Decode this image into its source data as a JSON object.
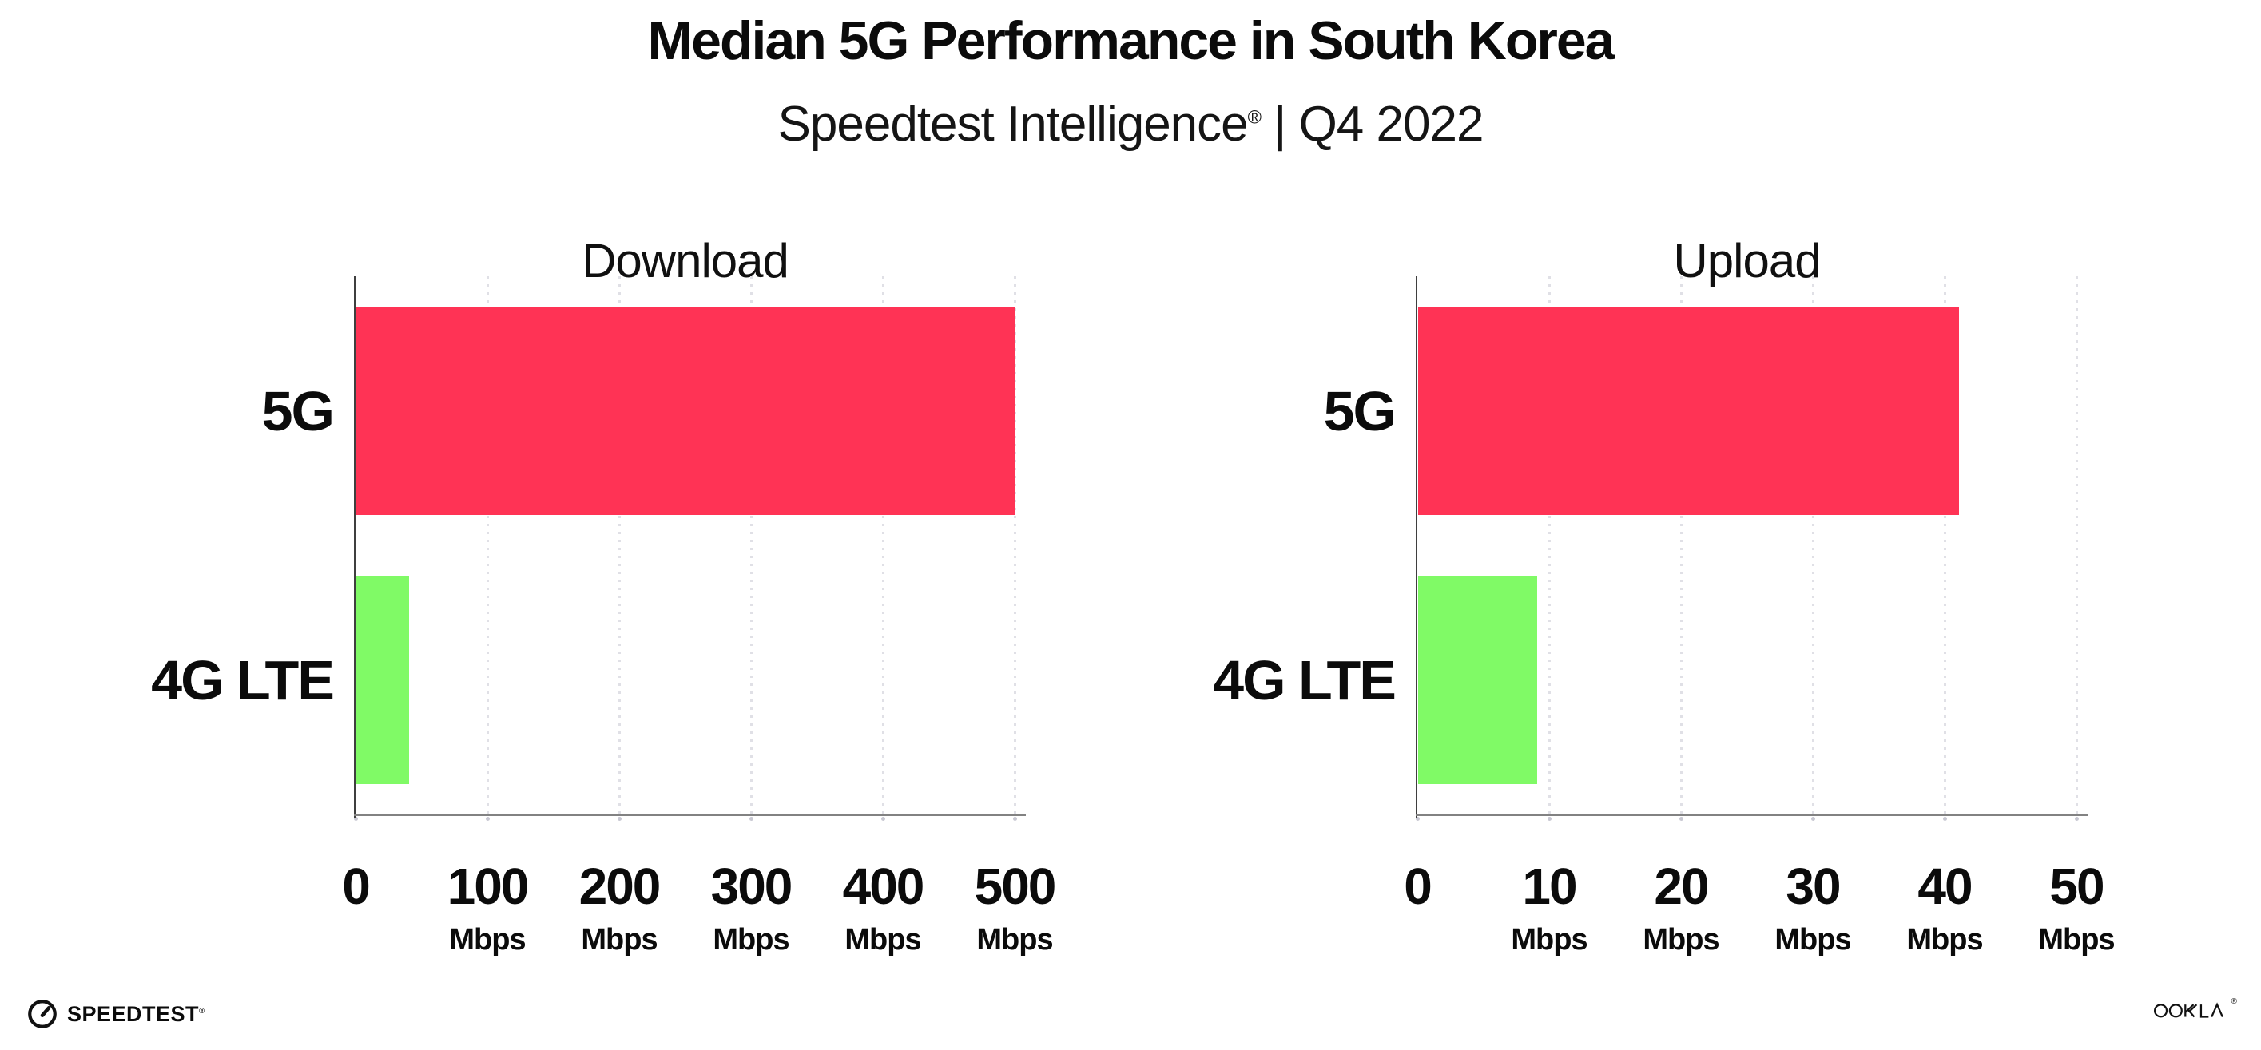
{
  "header": {
    "title": "Median 5G Performance in South Korea",
    "subtitle_brand": "Speedtest Intelligence",
    "subtitle_reg": "®",
    "subtitle_rest": " | Q4 2022"
  },
  "colors": {
    "bar_5g": "#FF3355",
    "bar_4g_lte": "#80FA66",
    "grid_dots": "#e0e0e6",
    "y_axis": "#3f3f3f",
    "x_axis": "#828282",
    "text": "#0b0b0b"
  },
  "chart_data": [
    {
      "type": "bar",
      "orientation": "horizontal",
      "title": "Download",
      "categories": [
        "5G",
        "4G LTE"
      ],
      "values": [
        500,
        40
      ],
      "unit": "Mbps",
      "xlabel": "",
      "ylabel": "",
      "xlim": [
        0,
        500
      ],
      "xticks": [
        0,
        100,
        200,
        300,
        400,
        500
      ],
      "grid": "vertical-dotted",
      "legend": "none",
      "bar_colors": [
        "#FF3355",
        "#80FA66"
      ]
    },
    {
      "type": "bar",
      "orientation": "horizontal",
      "title": "Upload",
      "categories": [
        "5G",
        "4G LTE"
      ],
      "values": [
        41,
        9
      ],
      "unit": "Mbps",
      "xlabel": "",
      "ylabel": "",
      "xlim": [
        0,
        50
      ],
      "xticks": [
        0,
        10,
        20,
        30,
        40,
        50
      ],
      "grid": "vertical-dotted",
      "legend": "none",
      "bar_colors": [
        "#FF3355",
        "#80FA66"
      ]
    }
  ],
  "footer": {
    "speedtest_text": "SPEEDTEST",
    "speedtest_reg": "®",
    "speedtest_icon": "speedometer-gauge-icon",
    "ookla_label": "OOKLA",
    "ookla_reg": "®"
  }
}
